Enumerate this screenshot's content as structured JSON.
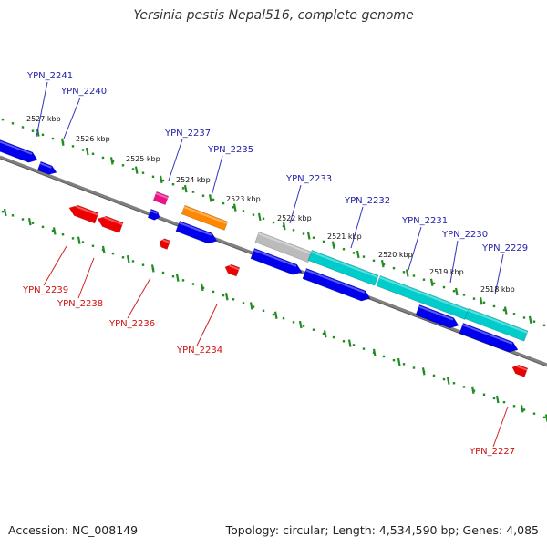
{
  "title": "Yersinia pestis Nepal516, complete genome",
  "footer": {
    "accession": "Accession: NC_008149",
    "topology": "Topology: circular; Length: 4,534,590 bp; Genes: 4,085"
  },
  "colors": {
    "backbone": "#808080",
    "tick": "#228B22",
    "forward_label": "#2222AA",
    "reverse_label": "#CC1111",
    "blue": "#0000EE",
    "red": "#EE0000",
    "cyan": "#00CCCC",
    "orange": "#FF8800",
    "magenta": "#EE1188",
    "gray": "#BBBBBB"
  },
  "kbp_marks": [
    "2527 kbp",
    "2526 kbp",
    "2525 kbp",
    "2524 kbp",
    "2523 kbp",
    "2522 kbp",
    "2521 kbp",
    "2520 kbp",
    "2519 kbp",
    "2518 kbp"
  ],
  "forward_labels": [
    "YPN_2241",
    "YPN_2240",
    "YPN_2237",
    "YPN_2235",
    "YPN_2233",
    "YPN_2232",
    "YPN_2231",
    "YPN_2230",
    "YPN_2229"
  ],
  "reverse_labels": [
    "YPN_2239",
    "YPN_2238",
    "YPN_2236",
    "YPN_2234",
    "YPN_2227"
  ]
}
